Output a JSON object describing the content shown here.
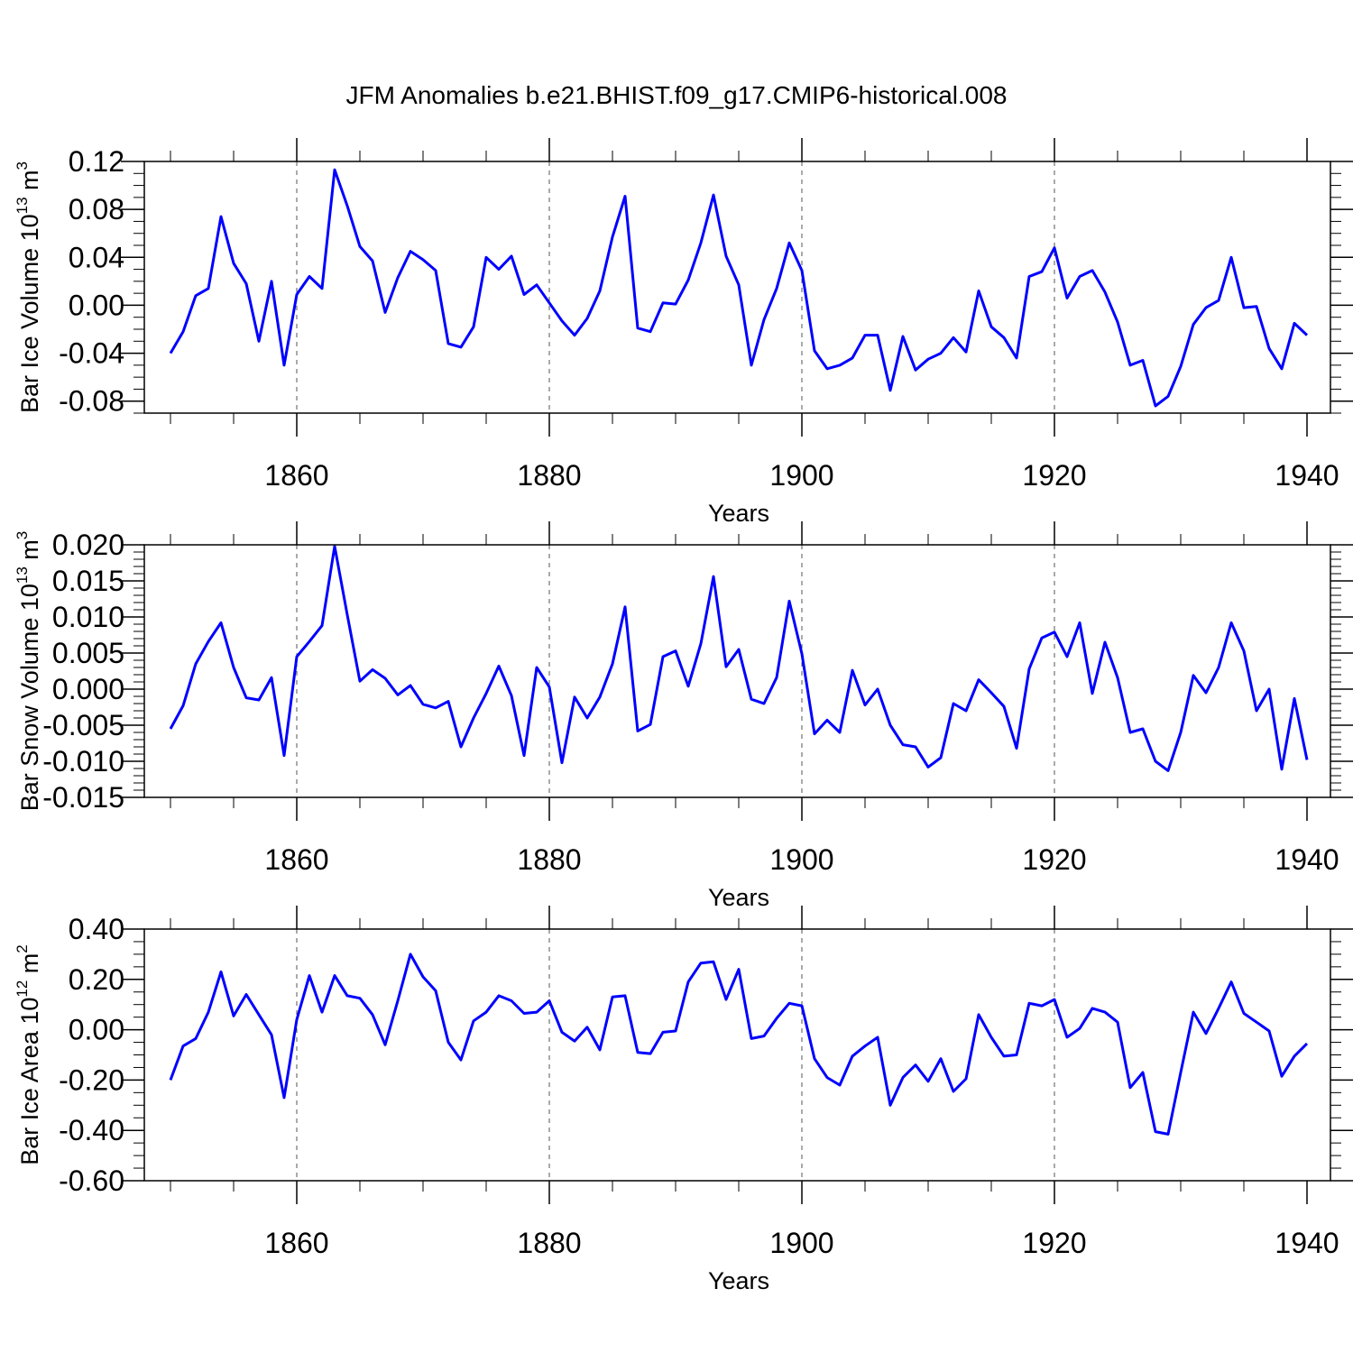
{
  "figure": {
    "title": "JFM Anomalies b.e21.BHIST.f09_g17.CMIP6-historical.008",
    "line_color": "#0000ff"
  },
  "chart_data": [
    {
      "type": "line",
      "ylabel": {
        "text": "Bar Ice Volume 10",
        "exp": "13",
        "unit": " m",
        "unit_exp": "3"
      },
      "xlabel": "Years",
      "xlim": [
        1850,
        1940
      ],
      "ylim": [
        -0.09,
        0.12
      ],
      "yticks": [
        0.12,
        0.08,
        0.04,
        0.0,
        -0.04,
        -0.08
      ],
      "ytick_labels": [
        "0.12",
        "0.08",
        "0.04",
        "0.00",
        "-0.04",
        "-0.08"
      ],
      "yminor_step": 0.01,
      "xticks": [
        1860,
        1880,
        1900,
        1920,
        1940
      ],
      "xtick_labels": [
        "1860",
        "1880",
        "1900",
        "1920",
        "1940"
      ],
      "series": [
        {
          "name": "Bar Ice Volume",
          "x_start": 1850,
          "values": [
            -0.04,
            -0.022,
            0.008,
            0.014,
            0.074,
            0.035,
            0.018,
            -0.03,
            0.02,
            -0.05,
            0.009,
            0.024,
            0.014,
            0.113,
            0.083,
            0.049,
            0.037,
            -0.006,
            0.023,
            0.045,
            0.038,
            0.029,
            -0.032,
            -0.035,
            -0.018,
            0.04,
            0.03,
            0.041,
            0.009,
            0.017,
            0.002,
            -0.013,
            -0.025,
            -0.011,
            0.012,
            0.057,
            0.091,
            -0.019,
            -0.022,
            0.002,
            0.001,
            0.021,
            0.052,
            0.092,
            0.041,
            0.017,
            -0.05,
            -0.012,
            0.014,
            0.052,
            0.029,
            -0.038,
            -0.053,
            -0.05,
            -0.044,
            -0.025,
            -0.025,
            -0.071,
            -0.026,
            -0.054,
            -0.045,
            -0.04,
            -0.027,
            -0.039,
            0.012,
            -0.018,
            -0.027,
            -0.044,
            0.024,
            0.028,
            0.048,
            0.006,
            0.024,
            0.029,
            0.011,
            -0.014,
            -0.05,
            -0.046,
            -0.084,
            -0.076,
            -0.051,
            -0.016,
            -0.002,
            0.004,
            0.04,
            -0.002,
            -0.001,
            -0.036,
            -0.053,
            -0.015,
            -0.025
          ]
        }
      ]
    },
    {
      "type": "line",
      "ylabel": {
        "text": "Bar Snow Volume 10",
        "exp": "13",
        "unit": " m",
        "unit_exp": "3"
      },
      "xlabel": "Years",
      "xlim": [
        1850,
        1940
      ],
      "ylim": [
        -0.015,
        0.02
      ],
      "yticks": [
        0.02,
        0.015,
        0.01,
        0.005,
        0.0,
        -0.005,
        -0.01,
        -0.015
      ],
      "ytick_labels": [
        "0.020",
        "0.015",
        "0.010",
        "0.005",
        "0.000",
        "-0.005",
        "-0.010",
        "-0.015"
      ],
      "yminor_step": 0.001,
      "xticks": [
        1860,
        1880,
        1900,
        1920,
        1940
      ],
      "xtick_labels": [
        "1860",
        "1880",
        "1900",
        "1920",
        "1940"
      ],
      "series": [
        {
          "name": "Bar Snow Volume",
          "x_start": 1850,
          "values": [
            -0.0055,
            -0.0023,
            0.0035,
            0.0066,
            0.0092,
            0.003,
            -0.0012,
            -0.0015,
            0.0016,
            -0.0092,
            0.0045,
            0.0066,
            0.0088,
            0.0198,
            0.0103,
            0.0011,
            0.0027,
            0.0015,
            -0.0008,
            0.0005,
            -0.0021,
            -0.0026,
            -0.0017,
            -0.008,
            -0.004,
            -0.0006,
            0.0032,
            -0.0009,
            -0.0092,
            0.003,
            0.0003,
            -0.0102,
            -0.0011,
            -0.004,
            -0.0011,
            0.0035,
            0.0114,
            -0.0058,
            -0.0049,
            0.0045,
            0.0053,
            0.0004,
            0.0063,
            0.0156,
            0.0031,
            0.0055,
            -0.0014,
            -0.002,
            0.0016,
            0.0122,
            0.0049,
            -0.0062,
            -0.0043,
            -0.006,
            0.0026,
            -0.0022,
            0.0,
            -0.005,
            -0.0077,
            -0.008,
            -0.0108,
            -0.0095,
            -0.002,
            -0.003,
            0.0013,
            -0.0005,
            -0.0024,
            -0.0082,
            0.0028,
            0.0071,
            0.0079,
            0.0045,
            0.0092,
            -0.0006,
            0.0065,
            0.0016,
            -0.006,
            -0.0055,
            -0.01,
            -0.0113,
            -0.006,
            0.0019,
            -0.0005,
            0.003,
            0.0092,
            0.0053,
            -0.003,
            0.0,
            -0.0111,
            -0.0013,
            -0.0098
          ]
        }
      ]
    },
    {
      "type": "line",
      "ylabel": {
        "text": "Bar Ice Area 10",
        "exp": "12",
        "unit": " m",
        "unit_exp": "2"
      },
      "xlabel": "Years",
      "xlim": [
        1850,
        1940
      ],
      "ylim": [
        -0.6,
        0.4
      ],
      "yticks": [
        0.4,
        0.2,
        0.0,
        -0.2,
        -0.4,
        -0.6
      ],
      "ytick_labels": [
        "0.40",
        "0.20",
        "0.00",
        "-0.20",
        "-0.40",
        "-0.60"
      ],
      "yminor_step": 0.05,
      "xticks": [
        1860,
        1880,
        1900,
        1920,
        1940
      ],
      "xtick_labels": [
        "1860",
        "1880",
        "1900",
        "1920",
        "1940"
      ],
      "series": [
        {
          "name": "Bar Ice Area",
          "x_start": 1850,
          "values": [
            -0.2,
            -0.065,
            -0.035,
            0.07,
            0.23,
            0.055,
            0.14,
            0.06,
            -0.02,
            -0.27,
            0.04,
            0.215,
            0.07,
            0.215,
            0.135,
            0.125,
            0.06,
            -0.06,
            0.115,
            0.3,
            0.21,
            0.155,
            -0.05,
            -0.12,
            0.035,
            0.07,
            0.135,
            0.115,
            0.065,
            0.07,
            0.115,
            -0.01,
            -0.045,
            0.01,
            -0.08,
            0.13,
            0.135,
            -0.09,
            -0.095,
            -0.01,
            -0.005,
            0.19,
            0.265,
            0.27,
            0.12,
            0.24,
            -0.035,
            -0.025,
            0.045,
            0.105,
            0.095,
            -0.115,
            -0.19,
            -0.22,
            -0.105,
            -0.065,
            -0.03,
            -0.3,
            -0.19,
            -0.14,
            -0.205,
            -0.115,
            -0.245,
            -0.195,
            0.06,
            -0.03,
            -0.105,
            -0.1,
            0.105,
            0.095,
            0.12,
            -0.03,
            0.005,
            0.085,
            0.07,
            0.03,
            -0.23,
            -0.17,
            -0.405,
            -0.415,
            -0.17,
            0.07,
            -0.015,
            0.085,
            0.19,
            0.065,
            0.03,
            -0.005,
            -0.185,
            -0.105,
            -0.055
          ]
        }
      ]
    }
  ]
}
